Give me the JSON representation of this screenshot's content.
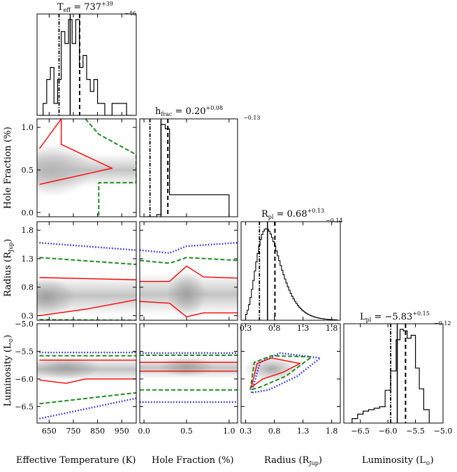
{
  "figure": {
    "type": "corner_plot",
    "parameters": [
      "Effective Temperature (K)",
      "Hole Fraction (%)",
      "Radius (RJup)",
      "Luminosity (L⊙)"
    ]
  },
  "titles": {
    "teff": {
      "base": "T",
      "sub": "eff",
      "eq": " = 737",
      "sup": "+39",
      "low": "−46"
    },
    "hfrac": {
      "base": "h",
      "sub": "frac",
      "eq": " = 0.20",
      "sup": "+0.08",
      "low": "−0.13"
    },
    "rpl": {
      "base": "R",
      "sub": "pl",
      "eq": " = 0.68",
      "sup": "+0.13",
      "low": "−0.14"
    },
    "lpl": {
      "base": "L",
      "sub": "pl",
      "eq": " = −5.83",
      "sup": "+0.15",
      "low": "−0.12"
    }
  },
  "axis_labels": {
    "x_teff": "Effective Temperature (K)",
    "x_hfrac": "Hole Fraction (%)",
    "x_radius": {
      "base": "Radius (R",
      "sub": "Jup",
      "end": ")"
    },
    "x_lum": {
      "base": "Luminosity (L",
      "sub": "⊙",
      "end": ")"
    },
    "y_hfrac": "Hole Fraction (%)",
    "y_radius": {
      "base": "Radius (R",
      "sub": "Jup",
      "end": ")"
    },
    "y_lum": {
      "base": "Luminosity (L",
      "sub": "⊙",
      "end": ")"
    }
  },
  "chart_data": {
    "type": "corner",
    "params": {
      "teff": {
        "range": [
          600,
          1010
        ],
        "ticks": [
          650,
          750,
          850,
          950
        ],
        "tick_labels": [
          "650",
          "750",
          "850",
          "950"
        ]
      },
      "hfrac": {
        "range": [
          -0.05,
          1.1
        ],
        "ticks": [
          0.0,
          0.5,
          1.0
        ],
        "tick_labels": [
          "0.0",
          "0.5",
          "1.0"
        ]
      },
      "radius": {
        "range": [
          0.22,
          1.95
        ],
        "ticks": [
          0.3,
          0.8,
          1.3,
          1.8
        ],
        "tick_labels": [
          "0.3",
          "0.8",
          "1.3",
          "1.8"
        ]
      },
      "lum": {
        "range": [
          -6.8,
          -5.0
        ],
        "ticks": [
          -6.5,
          -6.0,
          -5.5,
          -5.0
        ],
        "tick_labels": [
          "−6.5",
          "−6.0",
          "−5.5",
          "−5.0"
        ]
      }
    },
    "histograms": {
      "teff": {
        "edges": [
          610,
          625,
          640,
          655,
          670,
          685,
          700,
          715,
          730,
          745,
          760,
          775,
          790,
          805,
          820,
          835,
          850,
          865,
          880,
          895,
          910,
          925,
          940,
          955,
          970,
          985,
          1000
        ],
        "counts": [
          0,
          1,
          3,
          4,
          1,
          3,
          7,
          6,
          8,
          6,
          8,
          4,
          5,
          3,
          2,
          3,
          1,
          1,
          0,
          0,
          1,
          1,
          1,
          1,
          0,
          0
        ],
        "median": 737,
        "lo": 691,
        "hi": 776
      },
      "hfrac": {
        "edges": [
          0.02,
          0.05,
          0.1,
          0.15,
          0.2,
          0.25,
          0.3,
          0.4,
          0.5,
          0.6,
          0.7,
          0.8,
          0.9,
          1.0
        ],
        "counts": [
          0,
          0,
          0,
          0.1,
          4.2,
          4.0,
          1.0,
          1.0,
          1.0,
          1.0,
          1.0,
          1.0,
          1.0
        ],
        "median": 0.2,
        "lo": 0.07,
        "hi": 0.28
      },
      "radius": {
        "shape": "lognormal",
        "peak": 0.66,
        "width": 0.22,
        "median": 0.68,
        "lo": 0.54,
        "hi": 0.81
      },
      "lum": {
        "edges": [
          -6.65,
          -6.55,
          -6.45,
          -6.35,
          -6.25,
          -6.15,
          -6.05,
          -5.95,
          -5.85,
          -5.78,
          -5.72,
          -5.65,
          -5.58,
          -5.5,
          -5.43,
          -5.35,
          -5.25
        ],
        "counts": [
          0.3,
          0.6,
          0.8,
          0.9,
          1.0,
          1.1,
          2.2,
          3.5,
          5.6,
          6.3,
          6.2,
          5.7,
          5.9,
          3.7,
          2.3,
          0.9
        ],
        "median": -5.83,
        "lo": -5.95,
        "hi": -5.68
      }
    },
    "contours": {
      "teff_hfrac": {
        "red": [
          [
            610,
            0.75
          ],
          [
            700,
            1.1
          ],
          [
            700,
            0.8
          ],
          [
            910,
            0.52
          ],
          [
            610,
            0.33
          ]
        ],
        "green": [
          [
            800,
            1.1
          ],
          [
            855,
            0.92
          ],
          [
            1010,
            0.68
          ],
          [
            1010,
            0.35
          ],
          [
            855,
            0.35
          ],
          [
            855,
            -0.05
          ]
        ],
        "density_peaks": [
          [
            640,
            0.5
          ]
        ]
      },
      "teff_radius": {
        "red_upper": [
          [
            610,
            0.97
          ],
          [
            1010,
            0.93
          ]
        ],
        "red_lower": [
          [
            610,
            0.3
          ],
          [
            810,
            0.42
          ],
          [
            1010,
            0.58
          ]
        ],
        "green_upper": [
          [
            610,
            1.32
          ],
          [
            1010,
            1.2
          ]
        ],
        "green_lower": [
          [
            610,
            0.23
          ],
          [
            1010,
            0.22
          ]
        ],
        "blue_upper": [
          [
            610,
            1.58
          ],
          [
            1010,
            1.45
          ]
        ]
      },
      "hfrac_radius": {
        "red_upper": [
          [
            -0.05,
            0.9
          ],
          [
            0.3,
            0.9
          ],
          [
            0.5,
            1.17
          ],
          [
            0.7,
            0.98
          ],
          [
            1.1,
            0.96
          ]
        ],
        "red_lower": [
          [
            -0.05,
            0.55
          ],
          [
            0.3,
            0.52
          ],
          [
            0.5,
            0.28
          ],
          [
            0.7,
            0.35
          ],
          [
            1.1,
            0.35
          ]
        ],
        "green_upper": [
          [
            -0.05,
            1.27
          ],
          [
            0.3,
            1.22
          ],
          [
            0.5,
            1.32
          ],
          [
            1.1,
            1.27
          ]
        ],
        "blue_upper": [
          [
            -0.05,
            1.45
          ],
          [
            0.3,
            1.4
          ],
          [
            0.5,
            1.52
          ],
          [
            1.1,
            1.58
          ]
        ]
      },
      "teff_lum": {
        "red_upper": [
          [
            610,
            -5.66
          ],
          [
            1010,
            -5.66
          ]
        ],
        "red_lower": [
          [
            610,
            -6.02
          ],
          [
            720,
            -6.08
          ],
          [
            800,
            -6.0
          ],
          [
            1010,
            -6.0
          ]
        ],
        "green_upper": [
          [
            610,
            -5.58
          ],
          [
            1010,
            -5.58
          ]
        ],
        "green_lower": [
          [
            610,
            -6.45
          ],
          [
            1010,
            -6.25
          ]
        ],
        "blue_upper": [
          [
            610,
            -5.52
          ],
          [
            1010,
            -5.52
          ]
        ],
        "blue_lower": [
          [
            610,
            -6.72
          ],
          [
            1010,
            -6.35
          ]
        ]
      },
      "hfrac_lum": {
        "red_upper": [
          [
            -0.05,
            -5.7
          ],
          [
            1.1,
            -5.7
          ]
        ],
        "red_lower": [
          [
            -0.05,
            -5.86
          ],
          [
            1.1,
            -5.86
          ]
        ],
        "green_upper": [
          [
            -0.05,
            -5.57
          ],
          [
            1.1,
            -5.57
          ]
        ],
        "green_lower": [
          [
            -0.05,
            -6.2
          ],
          [
            1.1,
            -6.2
          ]
        ],
        "blue_upper": [
          [
            -0.05,
            -5.53
          ],
          [
            1.1,
            -5.53
          ]
        ],
        "blue_lower": [
          [
            -0.05,
            -6.42
          ],
          [
            1.1,
            -6.42
          ]
        ]
      },
      "radius_lum": {
        "red": [
          [
            0.4,
            -6.15
          ],
          [
            0.5,
            -5.72
          ],
          [
            0.75,
            -5.62
          ],
          [
            1.25,
            -5.72
          ],
          [
            0.95,
            -5.88
          ],
          [
            0.6,
            -6.0
          ]
        ],
        "green": [
          [
            0.38,
            -6.2
          ],
          [
            0.45,
            -5.7
          ],
          [
            0.75,
            -5.58
          ],
          [
            1.45,
            -5.6
          ],
          [
            1.0,
            -5.95
          ],
          [
            0.55,
            -6.15
          ]
        ],
        "blue": [
          [
            0.4,
            -6.25
          ],
          [
            0.55,
            -5.7
          ],
          [
            0.9,
            -5.53
          ],
          [
            1.6,
            -5.62
          ],
          [
            1.2,
            -5.95
          ],
          [
            0.7,
            -6.2
          ]
        ]
      }
    },
    "colors": {
      "one_sigma": "#ff0000",
      "two_sigma": "#228B22",
      "three_sigma": "#1f1fff",
      "density": "#9a9a9a"
    }
  }
}
